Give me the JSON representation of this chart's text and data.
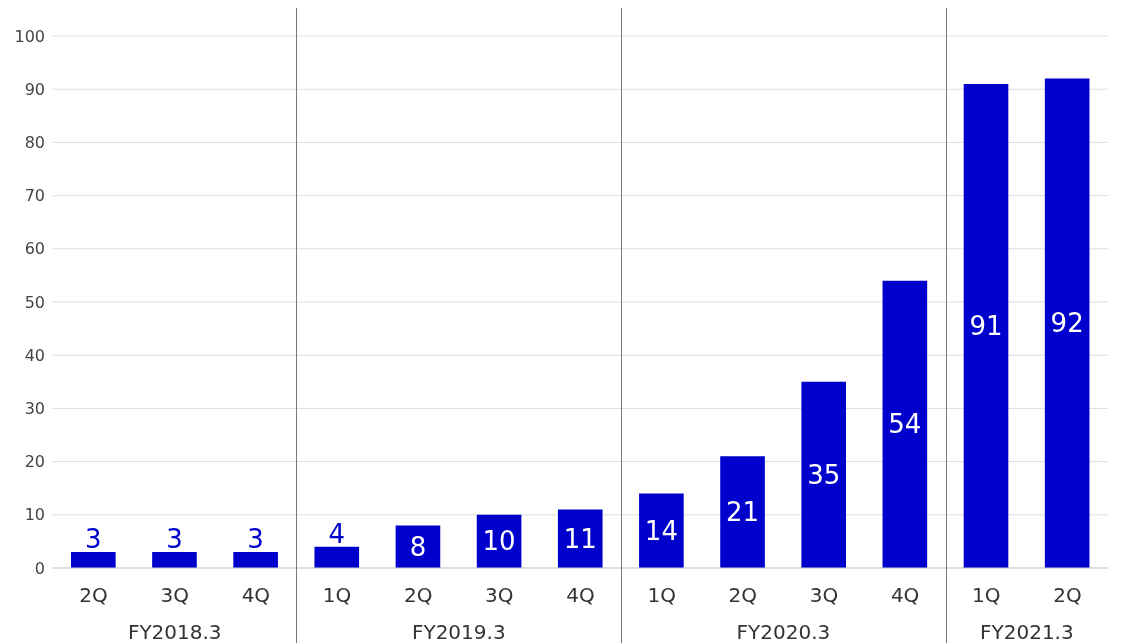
{
  "chart_data": {
    "type": "bar",
    "categories": [
      "2Q",
      "3Q",
      "4Q",
      "1Q",
      "2Q",
      "3Q",
      "4Q",
      "1Q",
      "2Q",
      "3Q",
      "4Q",
      "1Q",
      "2Q"
    ],
    "values": [
      3,
      3,
      3,
      4,
      8,
      10,
      11,
      14,
      21,
      35,
      54,
      91,
      92
    ],
    "color": "#0000cc",
    "data_labels": true,
    "ylim": [
      0,
      100
    ],
    "yticks": [
      0,
      10,
      20,
      30,
      40,
      50,
      60,
      70,
      80,
      90,
      100
    ],
    "grid": "y",
    "annotations": [
      "FY2018.3",
      "FY2019.3",
      "FY2020.3",
      "FY2021.3"
    ]
  }
}
